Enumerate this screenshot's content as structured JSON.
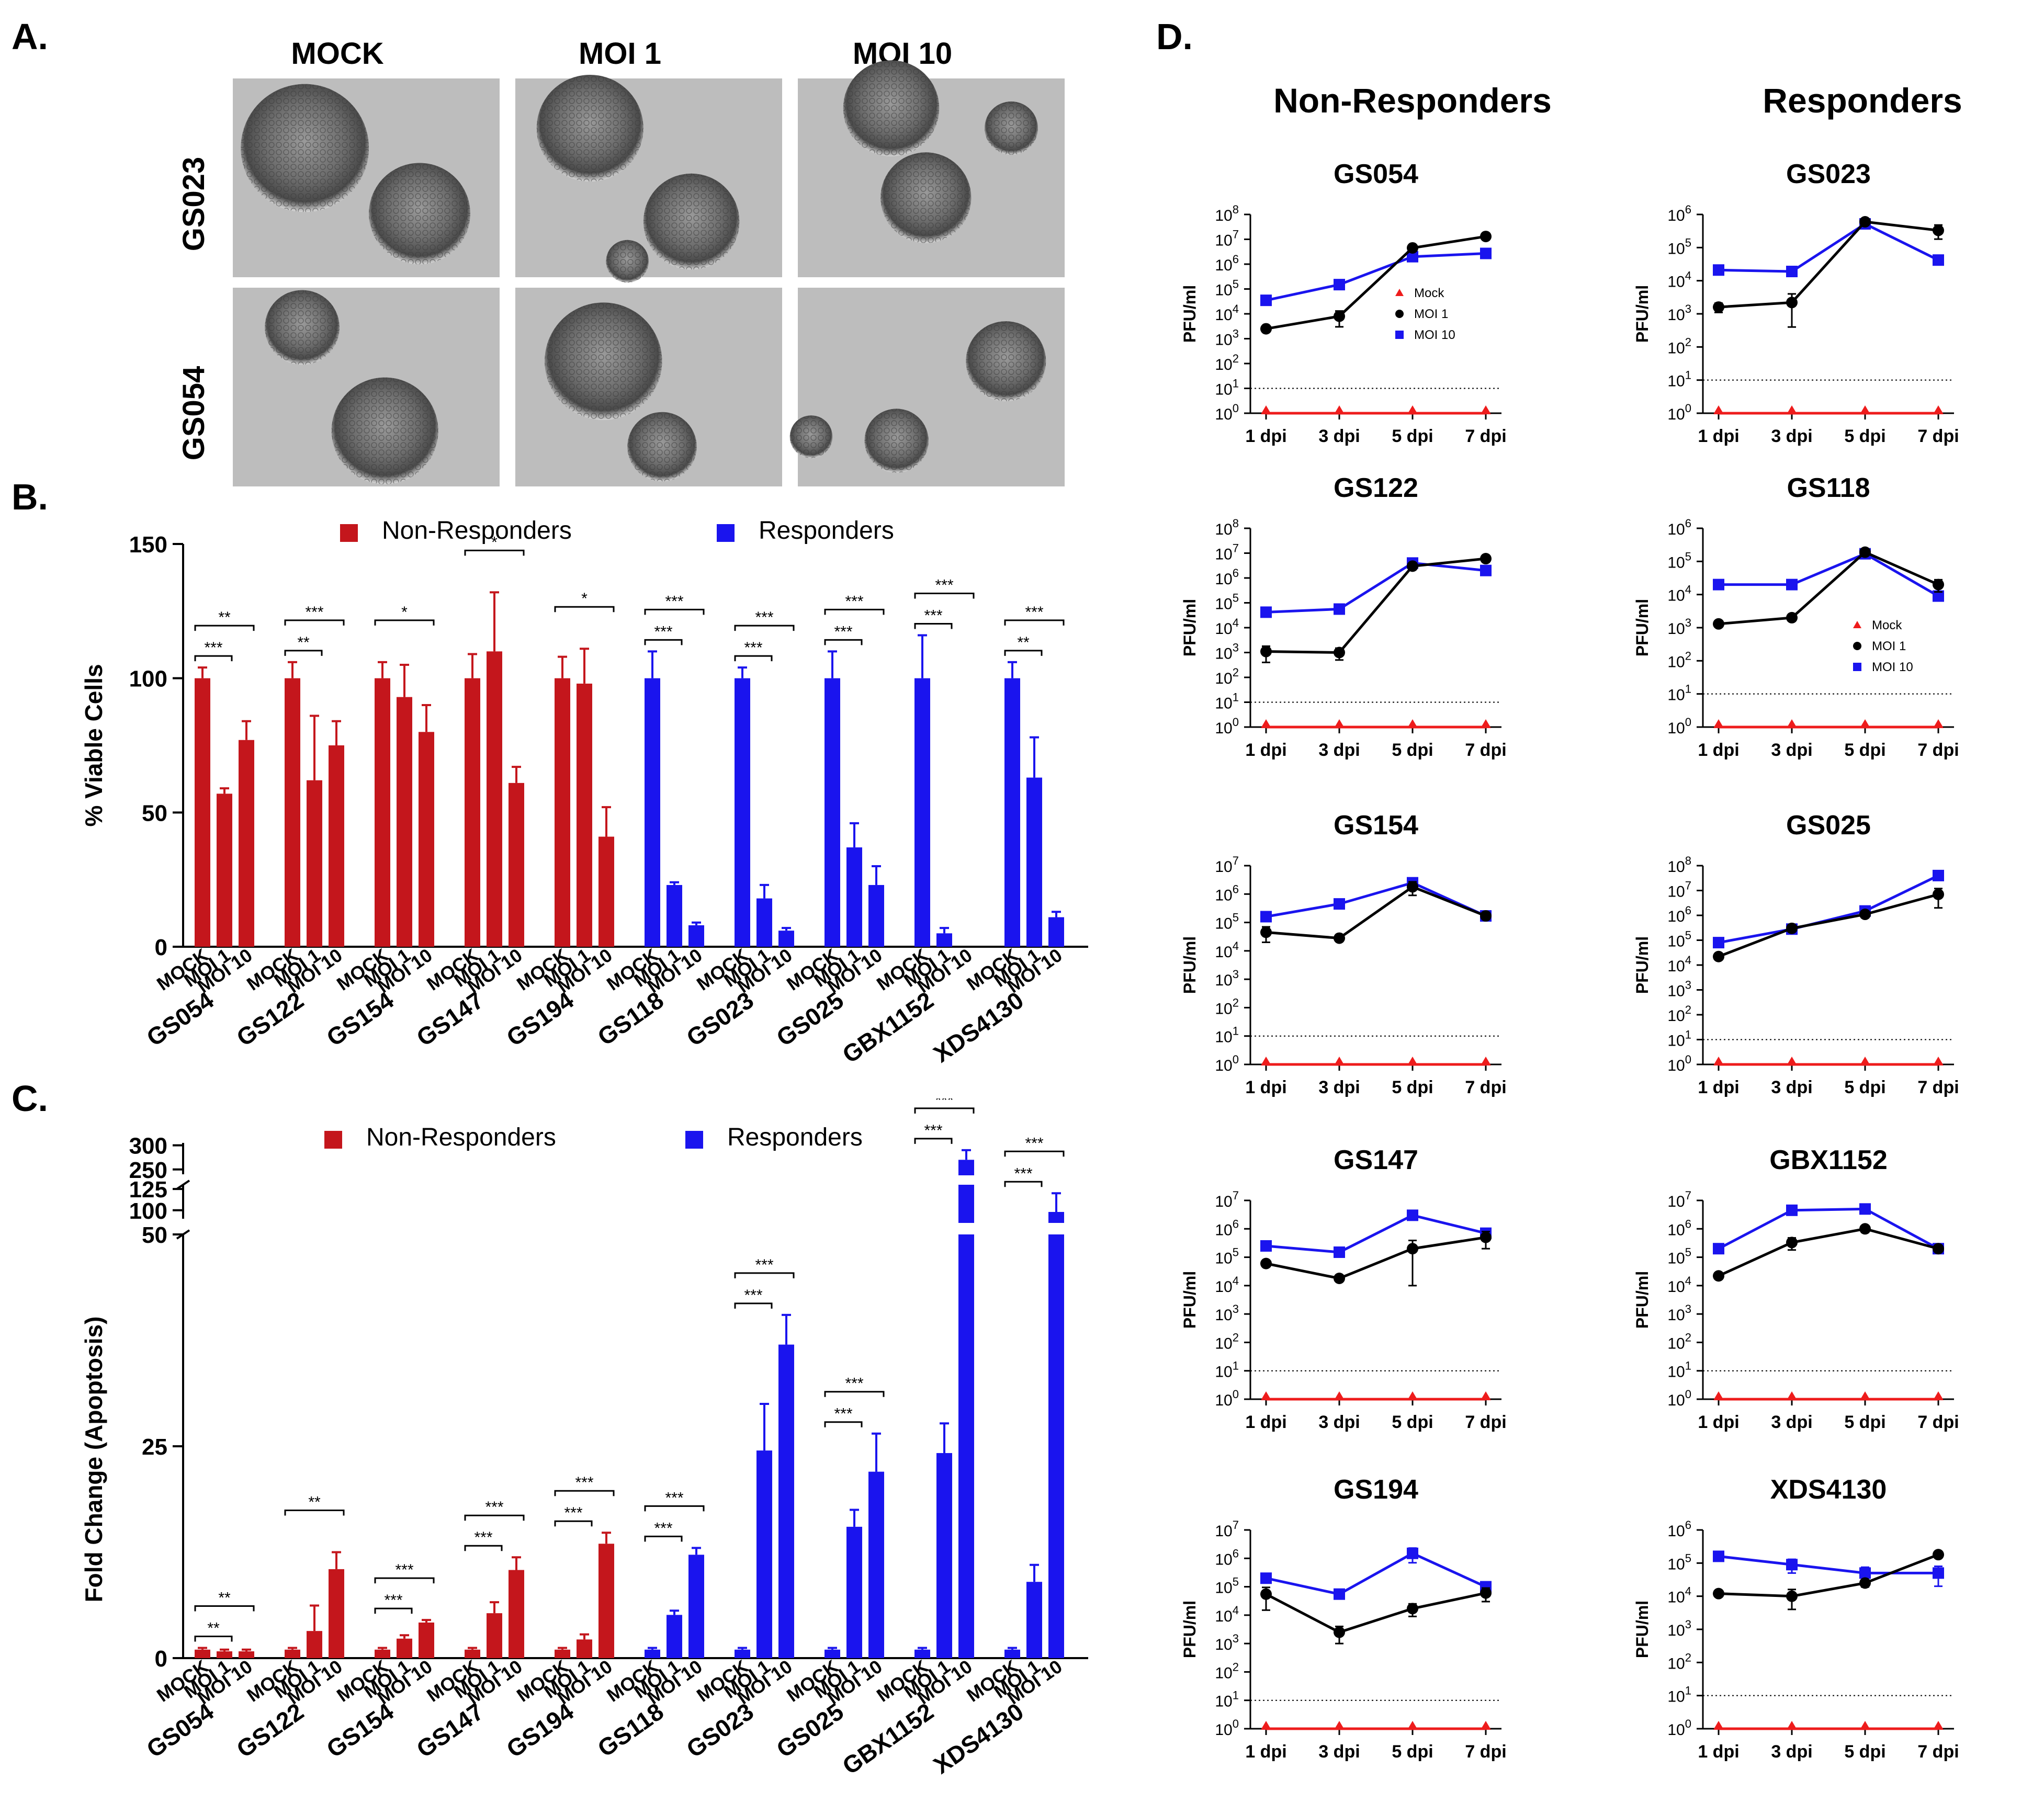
{
  "panel_labels": [
    "A.",
    "B.",
    "C.",
    "D."
  ],
  "panelA": {
    "columns": [
      "MOCK",
      "MOI 1",
      "MOI 10"
    ],
    "rows": [
      "GS023",
      "GS054"
    ]
  },
  "colors": {
    "non_responders": "#c4161c",
    "responders": "#1a14ee",
    "moi1": "#000000",
    "moi10": "#1a14ee",
    "mock": "#ee1c1c"
  },
  "chart_data": [
    {
      "panel": "B",
      "type": "bar",
      "ylabel": "% Viable Cells",
      "ylim": [
        0,
        150
      ],
      "yticks": [
        0,
        50,
        100,
        150
      ],
      "legend": [
        "Non-Responders",
        "Responders"
      ],
      "bar_labels": [
        "MOCK",
        "MOI 1",
        "MOI 10"
      ],
      "groups": [
        {
          "name": "GS054",
          "cls": "non",
          "values": [
            100,
            57,
            77
          ],
          "err": [
            4,
            2,
            7
          ],
          "sig": [
            {
              "pair": [
                0,
                1
              ],
              "label": "***"
            },
            {
              "pair": [
                0,
                2
              ],
              "label": "**"
            }
          ]
        },
        {
          "name": "GS122",
          "cls": "non",
          "values": [
            100,
            62,
            75
          ],
          "err": [
            6,
            24,
            9
          ],
          "sig": [
            {
              "pair": [
                0,
                1
              ],
              "label": "**"
            },
            {
              "pair": [
                0,
                2
              ],
              "label": "***"
            }
          ]
        },
        {
          "name": "GS154",
          "cls": "non",
          "values": [
            100,
            93,
            80
          ],
          "err": [
            6,
            12,
            10
          ],
          "sig": [
            {
              "pair": [
                0,
                2
              ],
              "label": "*"
            }
          ]
        },
        {
          "name": "GS147",
          "cls": "non",
          "values": [
            100,
            110,
            61
          ],
          "err": [
            9,
            22,
            6
          ],
          "sig": [
            {
              "pair": [
                0,
                2
              ],
              "label": "*"
            }
          ]
        },
        {
          "name": "GS194",
          "cls": "non",
          "values": [
            100,
            98,
            41
          ],
          "err": [
            8,
            13,
            11
          ],
          "sig": [
            {
              "pair": [
                0,
                2
              ],
              "label": "*"
            }
          ]
        },
        {
          "name": "GS118",
          "cls": "res",
          "values": [
            100,
            23,
            8
          ],
          "err": [
            10,
            1,
            1
          ],
          "sig": [
            {
              "pair": [
                0,
                1
              ],
              "label": "***"
            },
            {
              "pair": [
                0,
                2
              ],
              "label": "***"
            }
          ]
        },
        {
          "name": "GS023",
          "cls": "res",
          "values": [
            100,
            18,
            6
          ],
          "err": [
            4,
            5,
            1
          ],
          "sig": [
            {
              "pair": [
                0,
                1
              ],
              "label": "***"
            },
            {
              "pair": [
                0,
                2
              ],
              "label": "***"
            }
          ]
        },
        {
          "name": "GS025",
          "cls": "res",
          "values": [
            100,
            37,
            23
          ],
          "err": [
            10,
            9,
            7
          ],
          "sig": [
            {
              "pair": [
                0,
                1
              ],
              "label": "***"
            },
            {
              "pair": [
                0,
                2
              ],
              "label": "***"
            }
          ]
        },
        {
          "name": "GBX1152",
          "cls": "res",
          "values": [
            100,
            5,
            0
          ],
          "err": [
            16,
            2,
            0
          ],
          "sig": [
            {
              "pair": [
                0,
                1
              ],
              "label": "***"
            },
            {
              "pair": [
                0,
                2
              ],
              "label": "***"
            }
          ]
        },
        {
          "name": "XDS4130",
          "cls": "res",
          "values": [
            100,
            63,
            11
          ],
          "err": [
            6,
            15,
            2
          ],
          "sig": [
            {
              "pair": [
                0,
                1
              ],
              "label": "**"
            },
            {
              "pair": [
                0,
                2
              ],
              "label": "***"
            }
          ]
        }
      ]
    },
    {
      "panel": "C",
      "type": "bar",
      "ylabel": "Fold Change (Apoptosis)",
      "yticks": [
        "0",
        "25",
        "50",
        "100",
        "125",
        "250",
        "300"
      ],
      "axis_segments": [
        [
          0,
          50
        ],
        [
          90,
          130
        ],
        [
          240,
          305
        ]
      ],
      "legend": [
        "Non-Responders",
        "Responders"
      ],
      "bar_labels": [
        "MOCK",
        "MOI 1",
        "MOI 10"
      ],
      "groups": [
        {
          "name": "GS054",
          "cls": "non",
          "values": [
            1,
            0.8,
            0.8
          ],
          "err": [
            0.2,
            0.2,
            0.2
          ],
          "sig": [
            {
              "pair": [
                0,
                1
              ],
              "label": "**"
            },
            {
              "pair": [
                0,
                2
              ],
              "label": "**"
            }
          ]
        },
        {
          "name": "GS122",
          "cls": "non",
          "values": [
            1,
            3.2,
            10.5
          ],
          "err": [
            0.2,
            3,
            2
          ],
          "sig": [
            {
              "pair": [
                0,
                2
              ],
              "label": "**"
            }
          ]
        },
        {
          "name": "GS154",
          "cls": "non",
          "values": [
            1,
            2.3,
            4.2
          ],
          "err": [
            0.2,
            0.4,
            0.3
          ],
          "sig": [
            {
              "pair": [
                0,
                1
              ],
              "label": "***"
            },
            {
              "pair": [
                0,
                2
              ],
              "label": "***"
            }
          ]
        },
        {
          "name": "GS147",
          "cls": "non",
          "values": [
            1,
            5.3,
            10.4
          ],
          "err": [
            0.2,
            1.3,
            1.5
          ],
          "sig": [
            {
              "pair": [
                0,
                1
              ],
              "label": "***"
            },
            {
              "pair": [
                0,
                2
              ],
              "label": "***"
            }
          ]
        },
        {
          "name": "GS194",
          "cls": "non",
          "values": [
            1,
            2.2,
            13.5
          ],
          "err": [
            0.2,
            0.6,
            1.3
          ],
          "sig": [
            {
              "pair": [
                0,
                1
              ],
              "label": "***"
            },
            {
              "pair": [
                0,
                2
              ],
              "label": "***"
            }
          ]
        },
        {
          "name": "GS118",
          "cls": "res",
          "values": [
            1,
            5.1,
            12.2
          ],
          "err": [
            0.2,
            0.5,
            0.8
          ],
          "sig": [
            {
              "pair": [
                0,
                1
              ],
              "label": "***"
            },
            {
              "pair": [
                0,
                2
              ],
              "label": "***"
            }
          ]
        },
        {
          "name": "GS023",
          "cls": "res",
          "values": [
            1,
            24.5,
            37
          ],
          "err": [
            0.2,
            5.5,
            3.5
          ],
          "sig": [
            {
              "pair": [
                0,
                1
              ],
              "label": "***"
            },
            {
              "pair": [
                0,
                2
              ],
              "label": "***"
            }
          ]
        },
        {
          "name": "GS025",
          "cls": "res",
          "values": [
            1,
            15.5,
            22
          ],
          "err": [
            0.2,
            2,
            4.5
          ],
          "sig": [
            {
              "pair": [
                0,
                1
              ],
              "label": "***"
            },
            {
              "pair": [
                0,
                2
              ],
              "label": "***"
            }
          ]
        },
        {
          "name": "GBX1152",
          "cls": "res",
          "values": [
            1,
            24.2,
            270
          ],
          "err": [
            0.2,
            3.5,
            20
          ],
          "sig": [
            {
              "pair": [
                0,
                1
              ],
              "label": "***"
            },
            {
              "pair": [
                0,
                2
              ],
              "label": "***"
            }
          ]
        },
        {
          "name": "XDS4130",
          "cls": "res",
          "values": [
            1,
            9,
            98
          ],
          "err": [
            0.2,
            2,
            22
          ],
          "sig": [
            {
              "pair": [
                0,
                1
              ],
              "label": "***"
            },
            {
              "pair": [
                0,
                2
              ],
              "label": "***"
            }
          ]
        }
      ]
    },
    {
      "panel": "D",
      "type": "line",
      "yscale": "log",
      "ylabel": "PFU/ml",
      "x": [
        "1 dpi",
        "3 dpi",
        "5 dpi",
        "7 dpi"
      ],
      "column_titles": [
        "Non-Responders",
        "Responders"
      ],
      "legend_entries": [
        "Mock",
        "MOI 1",
        "MOI 10"
      ],
      "detection_limit": 10,
      "plots": [
        {
          "name": "GS054",
          "col": 0,
          "row": 0,
          "ymax_exp": 8,
          "legend": true,
          "moi1": [
            2500,
            8000,
            4500000,
            13000000
          ],
          "moi1_err": [
            300,
            5000,
            500000,
            1500000
          ],
          "moi10": [
            35000,
            150000,
            2000000,
            2700000
          ],
          "moi10_err": [
            3000,
            10000,
            300000,
            300000
          ]
        },
        {
          "name": "GS023",
          "col": 1,
          "row": 0,
          "ymax_exp": 6,
          "legend": false,
          "moi1": [
            1600,
            2200,
            600000,
            330000
          ],
          "moi1_err": [
            500,
            1800,
            100000,
            150000
          ],
          "moi10": [
            21000,
            19000,
            520000,
            42000
          ],
          "moi10_err": [
            2000,
            2000,
            50000,
            5000
          ]
        },
        {
          "name": "GS122",
          "col": 0,
          "row": 1,
          "ymax_exp": 8,
          "legend": false,
          "moi1": [
            1100,
            1000,
            3000000,
            6000000
          ],
          "moi1_err": [
            700,
            500,
            800000,
            800000
          ],
          "moi10": [
            42000,
            56000,
            4000000,
            2000000
          ],
          "moi10_err": [
            5000,
            5000,
            500000,
            300000
          ]
        },
        {
          "name": "GS118",
          "col": 1,
          "row": 1,
          "ymax_exp": 6,
          "legend": true,
          "moi1": [
            1300,
            2000,
            190000,
            20000
          ],
          "moi1_err": [
            200,
            200,
            30000,
            8000
          ],
          "moi10": [
            20000,
            20000,
            170000,
            9000
          ],
          "moi10_err": [
            2000,
            2000,
            20000,
            2000
          ]
        },
        {
          "name": "GS154",
          "col": 0,
          "row": 2,
          "ymax_exp": 7,
          "legend": false,
          "moi1": [
            45000,
            28000,
            1800000,
            170000
          ],
          "moi1_err": [
            25000,
            5000,
            900000,
            20000
          ],
          "moi10": [
            160000,
            450000,
            2500000,
            170000
          ],
          "moi10_err": [
            20000,
            50000,
            300000,
            20000
          ]
        },
        {
          "name": "GS025",
          "col": 1,
          "row": 2,
          "ymax_exp": 8,
          "legend": false,
          "moi1": [
            22000,
            300000,
            1100000,
            7000000
          ],
          "moi1_err": [
            3000,
            40000,
            300000,
            5000000
          ],
          "moi10": [
            80000,
            280000,
            1500000,
            40000000
          ],
          "moi10_err": [
            10000,
            30000,
            200000,
            5000000
          ]
        },
        {
          "name": "GS147",
          "col": 0,
          "row": 3,
          "ymax_exp": 7,
          "legend": false,
          "moi1": [
            60000,
            18000,
            200000,
            500000
          ],
          "moi1_err": [
            5000,
            4000,
            190000,
            300000
          ],
          "moi10": [
            250000,
            150000,
            3000000,
            700000
          ],
          "moi10_err": [
            30000,
            20000,
            300000,
            200000
          ]
        },
        {
          "name": "GBX1152",
          "col": 1,
          "row": 3,
          "ymax_exp": 7,
          "legend": false,
          "moi1": [
            22000,
            330000,
            1000000,
            200000
          ],
          "moi1_err": [
            3000,
            150000,
            250000,
            40000
          ],
          "moi10": [
            200000,
            4500000,
            5000000,
            200000
          ],
          "moi10_err": [
            20000,
            500000,
            1000000,
            30000
          ]
        },
        {
          "name": "GS194",
          "col": 0,
          "row": 4,
          "ymax_exp": 7,
          "legend": false,
          "moi1": [
            55000,
            2500,
            17000,
            60000
          ],
          "moi1_err": [
            40000,
            1500,
            8000,
            30000
          ],
          "moi10": [
            200000,
            55000,
            1500000,
            100000
          ],
          "moi10_err": [
            20000,
            8000,
            800000,
            15000
          ]
        },
        {
          "name": "XDS4130",
          "col": 1,
          "row": 4,
          "ymax_exp": 6,
          "legend": false,
          "moi1": [
            12000,
            10000,
            25000,
            180000
          ],
          "moi1_err": [
            1500,
            6000,
            6000,
            20000
          ],
          "moi10": [
            160000,
            90000,
            50000,
            50000
          ],
          "moi10_err": [
            40000,
            40000,
            25000,
            30000
          ]
        }
      ]
    }
  ]
}
